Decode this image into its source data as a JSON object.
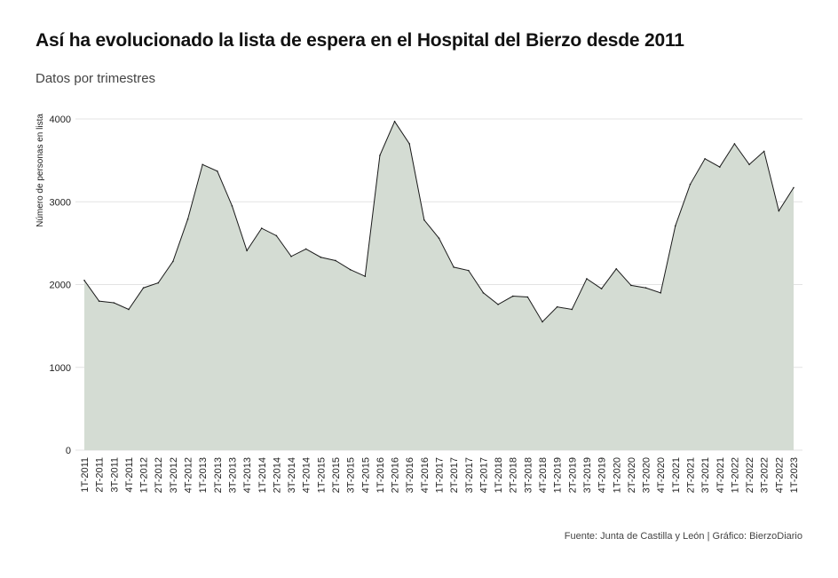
{
  "header": {
    "title": "Así ha evolucionado la lista de espera en el Hospital del Bierzo desde 2011",
    "subtitle": "Datos por trimestres"
  },
  "footer": {
    "source": "Fuente: Junta de Castilla y León | Gráfico: BierzoDiario"
  },
  "colors": {
    "area_fill": "#d4dcd3",
    "line": "#1a1a1a",
    "grid": "#e3e3e3"
  },
  "chart_data": {
    "type": "area",
    "title": "Así ha evolucionado la lista de espera en el Hospital del Bierzo desde 2011",
    "subtitle": "Datos por trimestres",
    "xlabel": "",
    "ylabel": "Número de personas en lista",
    "ylim": [
      0,
      4000
    ],
    "yticks": [
      0,
      1000,
      2000,
      3000,
      4000
    ],
    "grid": true,
    "legend": "none",
    "categories": [
      "1T-2011",
      "2T-2011",
      "3T-2011",
      "4T-2011",
      "1T-2012",
      "2T-2012",
      "3T-2012",
      "4T-2012",
      "1T-2013",
      "2T-2013",
      "3T-2013",
      "4T-2013",
      "1T-2014",
      "2T-2014",
      "3T-2014",
      "4T-2014",
      "1T-2015",
      "2T-2015",
      "3T-2015",
      "4T-2015",
      "1T-2016",
      "2T-2016",
      "3T-2016",
      "4T-2016",
      "1T-2017",
      "2T-2017",
      "3T-2017",
      "4T-2017",
      "1T-2018",
      "2T-2018",
      "3T-2018",
      "4T-2018",
      "1T-2019",
      "2T-2019",
      "3T-2019",
      "4T-2019",
      "1T-2020",
      "2T-2020",
      "3T-2020",
      "4T-2020",
      "1T-2021",
      "2T-2021",
      "3T-2021",
      "4T-2021",
      "1T-2022",
      "2T-2022",
      "3T-2022",
      "4T-2022",
      "1T-2023"
    ],
    "values": [
      2050,
      1800,
      1780,
      1700,
      1960,
      2020,
      2280,
      2790,
      3450,
      3370,
      2950,
      2410,
      2680,
      2590,
      2340,
      2430,
      2330,
      2290,
      2180,
      2100,
      3560,
      3970,
      3700,
      2780,
      2560,
      2210,
      2170,
      1900,
      1760,
      1860,
      1850,
      1550,
      1730,
      1700,
      2070,
      1950,
      2190,
      1990,
      1960,
      1900,
      2710,
      3210,
      3520,
      3420,
      3700,
      3450,
      3610,
      2890,
      3170
    ]
  }
}
